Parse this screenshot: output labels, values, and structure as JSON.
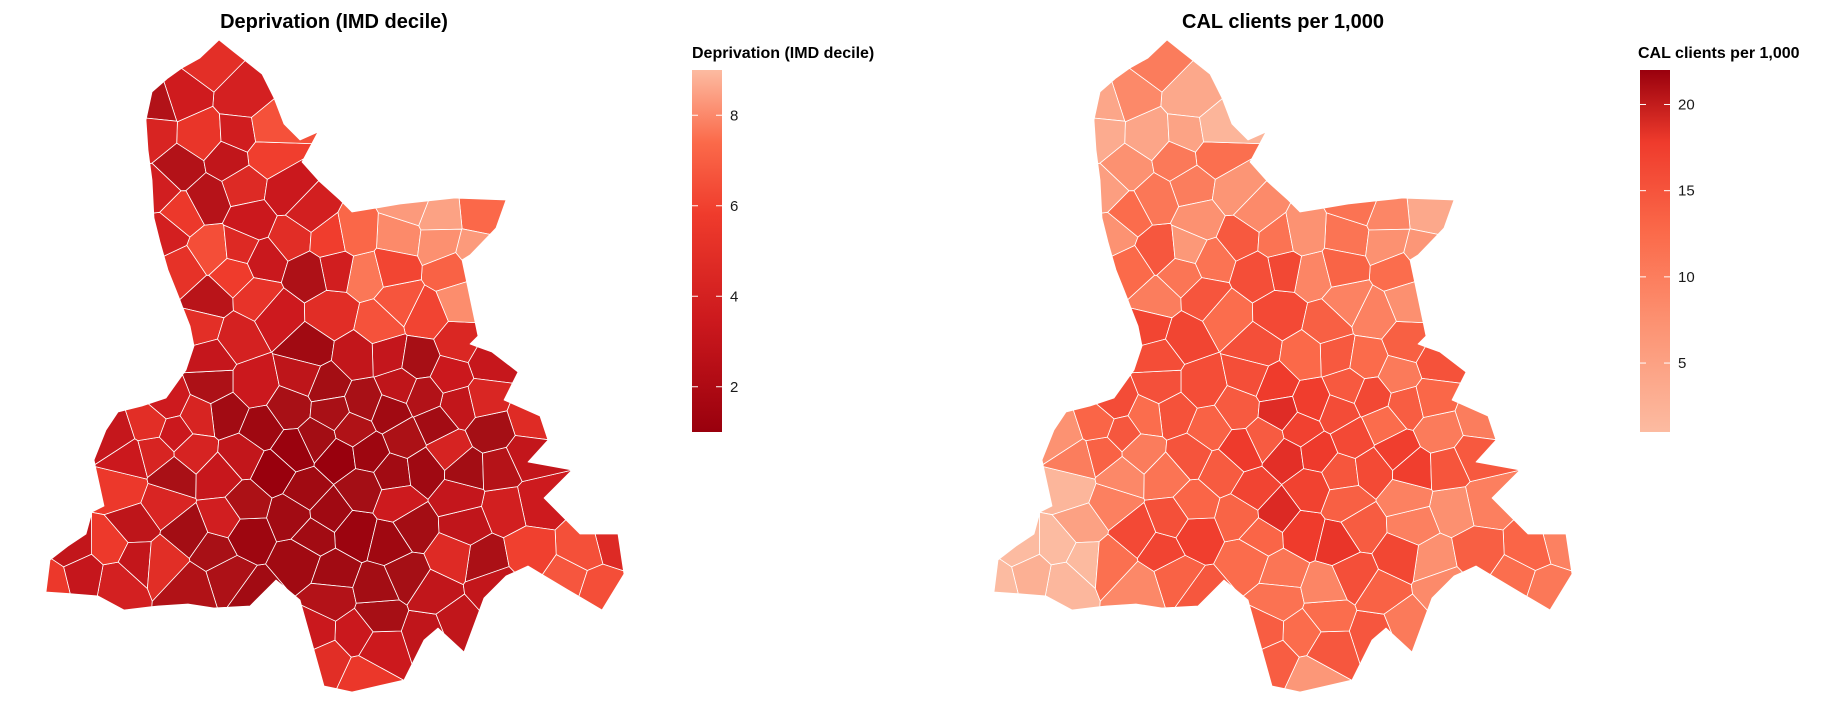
{
  "chart_data": [
    {
      "type": "choropleth",
      "title": "Deprivation (IMD decile)",
      "legend": {
        "title": "Deprivation (IMD decile)",
        "position": "right",
        "range": [
          1,
          9
        ],
        "ticks": [
          2,
          4,
          6,
          8
        ],
        "colors": {
          "low": "#99000d",
          "high": "#fcbba1"
        }
      },
      "value_summary": {
        "min": 1,
        "max": 9,
        "typical": 3
      }
    },
    {
      "type": "choropleth",
      "title": "CAL clients per 1,000",
      "legend": {
        "title": "CAL clients per 1,000",
        "position": "right",
        "range": [
          1,
          22
        ],
        "ticks": [
          5,
          10,
          15,
          20
        ],
        "colors": {
          "low": "#fcbba1",
          "high": "#99000d"
        }
      },
      "value_summary": {
        "min": 1,
        "max": 22,
        "typical": 8
      }
    }
  ]
}
